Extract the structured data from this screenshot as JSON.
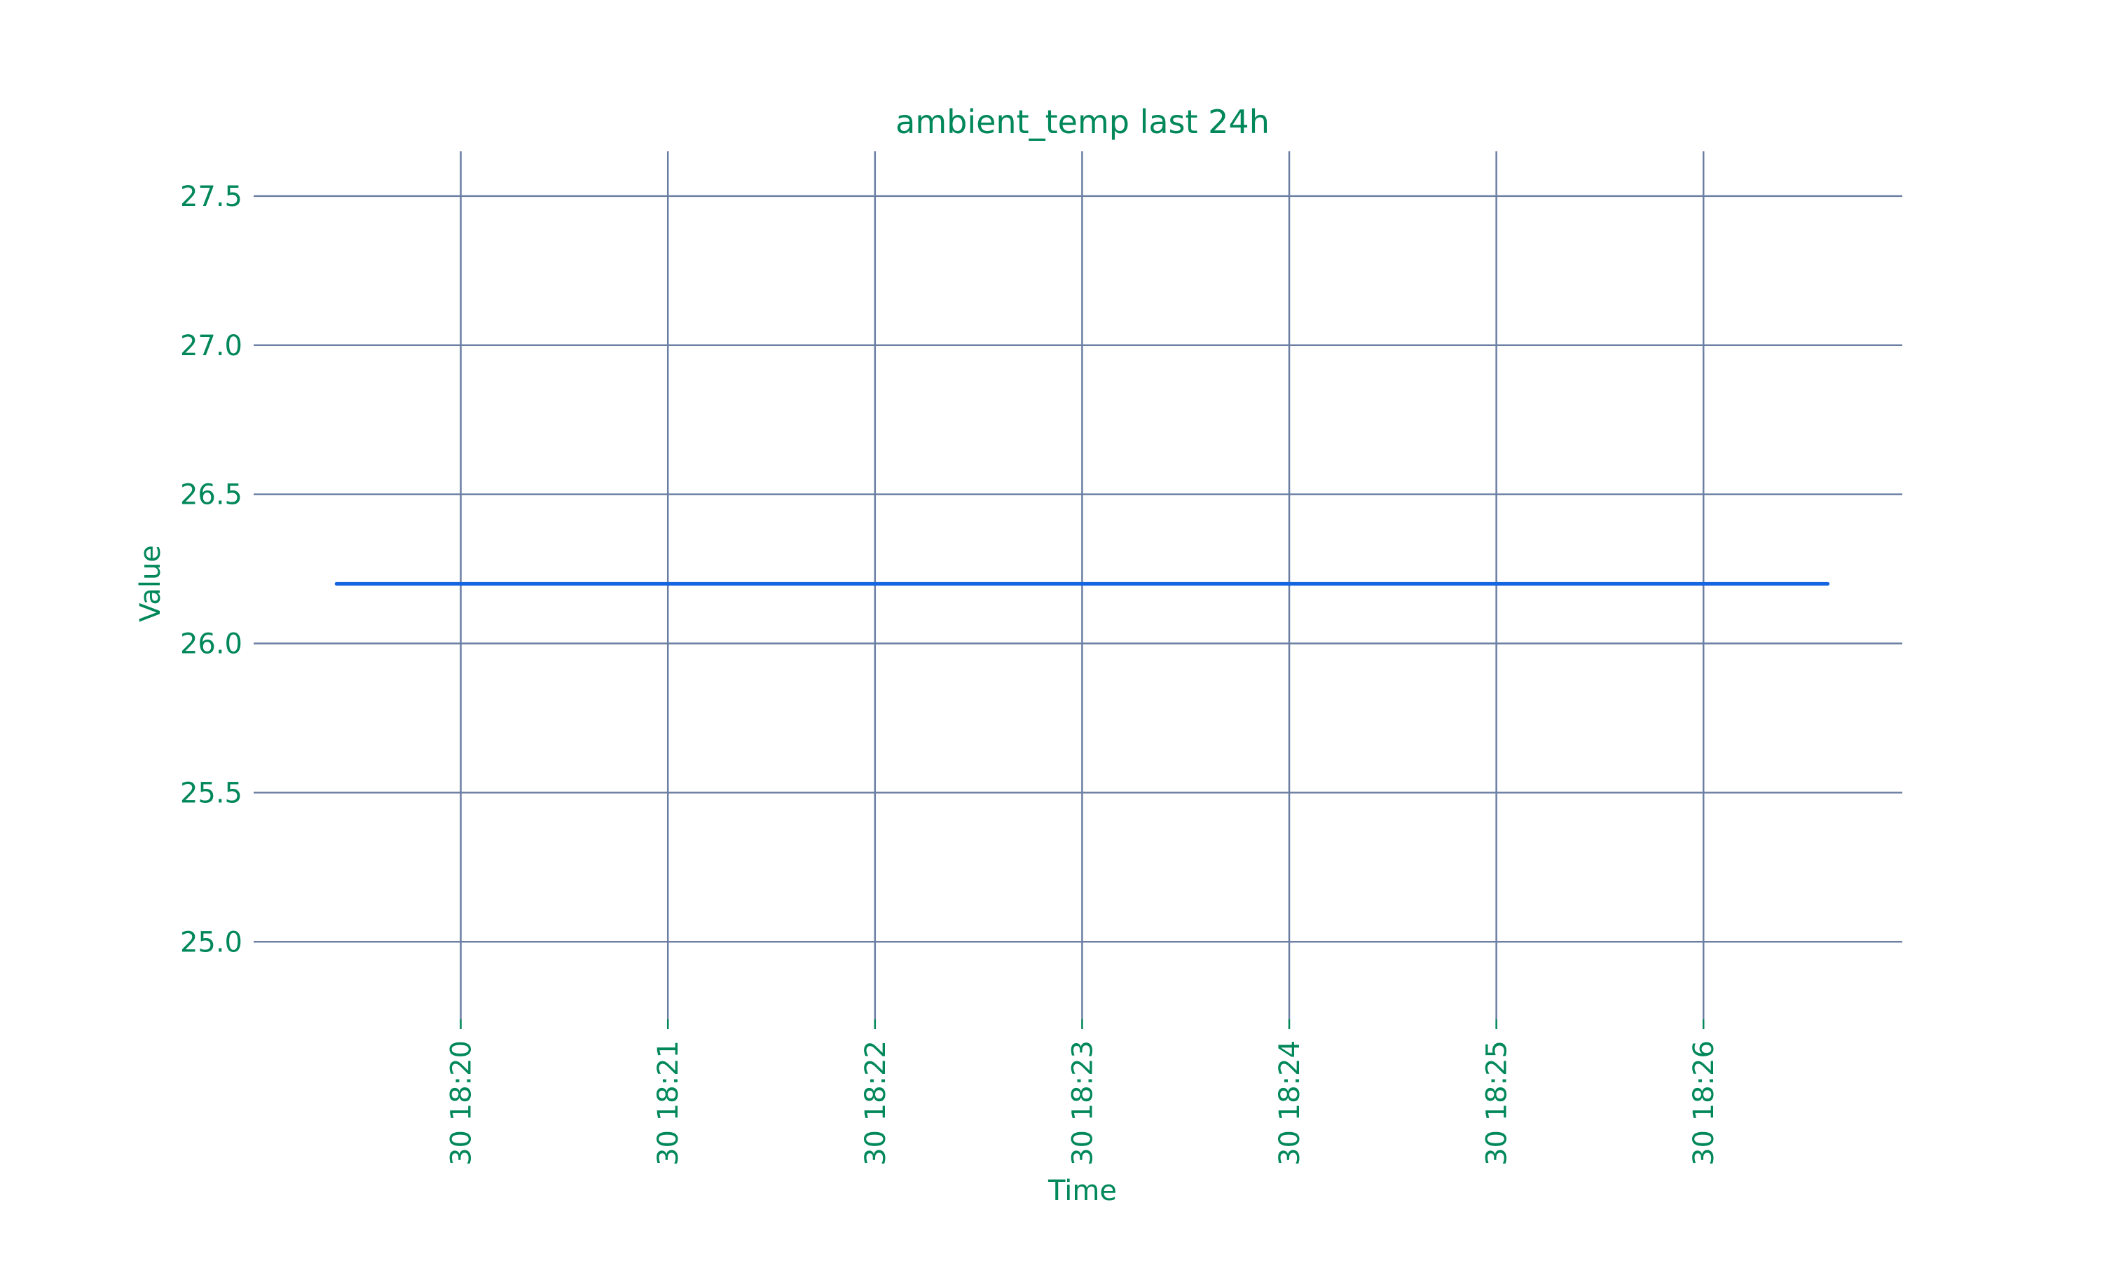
{
  "chart_data": {
    "type": "line",
    "title": "ambient_temp last 24h",
    "xlabel": "Time",
    "ylabel": "Value",
    "x_ticks": [
      "30 18:20",
      "30 18:21",
      "30 18:22",
      "30 18:23",
      "30 18:24",
      "30 18:25",
      "30 18:26"
    ],
    "x_tick_minutes": [
      20,
      21,
      22,
      23,
      24,
      25,
      26
    ],
    "xlim_minutes": [
      19.0,
      26.96
    ],
    "y_ticks": [
      25.0,
      25.5,
      26.0,
      26.5,
      27.0,
      27.5
    ],
    "ylim": [
      24.74,
      27.65
    ],
    "grid": true,
    "series": [
      {
        "color": "#1565e0",
        "x_minutes": [
          19.4,
          26.6
        ],
        "values": [
          26.2,
          26.2
        ]
      }
    ]
  }
}
